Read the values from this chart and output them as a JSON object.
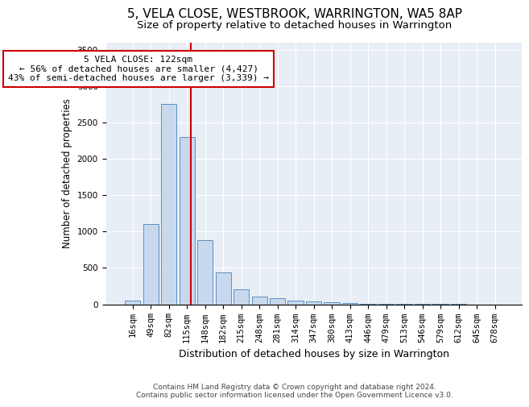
{
  "title1": "5, VELA CLOSE, WESTBROOK, WARRINGTON, WA5 8AP",
  "title2": "Size of property relative to detached houses in Warrington",
  "xlabel": "Distribution of detached houses by size in Warrington",
  "ylabel": "Number of detached properties",
  "categories": [
    "16sqm",
    "49sqm",
    "82sqm",
    "115sqm",
    "148sqm",
    "182sqm",
    "215sqm",
    "248sqm",
    "281sqm",
    "314sqm",
    "347sqm",
    "380sqm",
    "413sqm",
    "446sqm",
    "479sqm",
    "513sqm",
    "546sqm",
    "579sqm",
    "612sqm",
    "645sqm",
    "678sqm"
  ],
  "values": [
    50,
    1100,
    2750,
    2300,
    880,
    440,
    200,
    105,
    80,
    55,
    40,
    25,
    20,
    8,
    5,
    3,
    2,
    1,
    1,
    0,
    0
  ],
  "bar_color": "#c8d9ee",
  "bar_edge_color": "#5a8fc2",
  "vline_color": "#cc0000",
  "annotation_text": "5 VELA CLOSE: 122sqm\n← 56% of detached houses are smaller (4,427)\n43% of semi-detached houses are larger (3,339) →",
  "annotation_box_color": "#ffffff",
  "annotation_box_edge": "#cc0000",
  "ylim": [
    0,
    3600
  ],
  "yticks": [
    0,
    500,
    1000,
    1500,
    2000,
    2500,
    3000,
    3500
  ],
  "background_color": "#e8eef5",
  "footer1": "Contains HM Land Registry data © Crown copyright and database right 2024.",
  "footer2": "Contains public sector information licensed under the Open Government Licence v3.0.",
  "title1_fontsize": 11,
  "title2_fontsize": 9.5,
  "xlabel_fontsize": 9,
  "ylabel_fontsize": 8.5,
  "tick_fontsize": 7.5,
  "annotation_fontsize": 8,
  "footer_fontsize": 6.5,
  "vline_position": 3.21
}
